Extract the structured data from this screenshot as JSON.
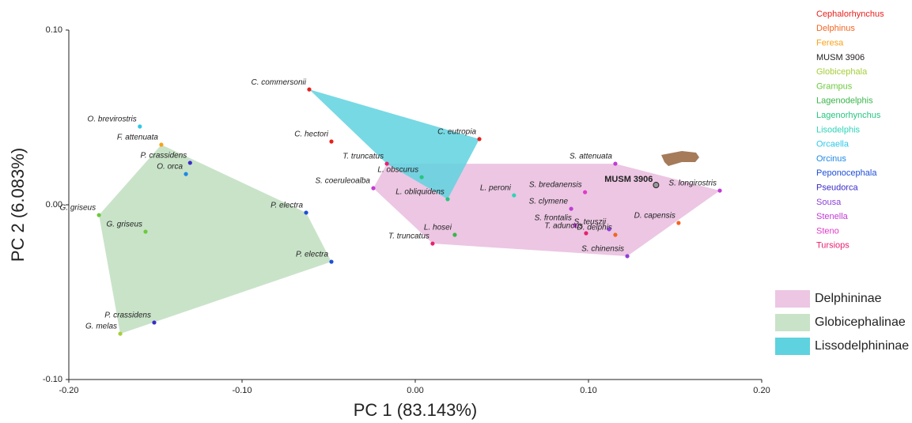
{
  "chart_data": {
    "type": "scatter",
    "xlabel": "PC 1 (83.143%)",
    "ylabel": "PC 2 (6.083%)",
    "xlim": [
      -0.2,
      0.2
    ],
    "ylim": [
      -0.1,
      0.1
    ],
    "xticks": [
      {
        "value": -0.2,
        "label": "-0.20"
      },
      {
        "value": -0.1,
        "label": "-0.10"
      },
      {
        "value": 0,
        "label": "0.00"
      },
      {
        "value": 0.1,
        "label": "0.10"
      },
      {
        "value": 0.2,
        "label": "0.20"
      }
    ],
    "yticks": [
      {
        "value": -0.1,
        "label": "-0.10"
      },
      {
        "value": 0,
        "label": "0.00"
      },
      {
        "value": 0.1,
        "label": "0.10"
      }
    ],
    "hulls": [
      {
        "name": "Delphininae",
        "color": "#ecc6e3",
        "x": [
          -0.0242,
          -0.0164,
          0.1155,
          0.1758,
          0.1224,
          0.01
        ],
        "y": [
          0.0095,
          0.0235,
          0.0235,
          0.0081,
          -0.0294,
          -0.0222
        ]
      },
      {
        "name": "Globicephalinae",
        "color": "#c9e3c9",
        "x": [
          -0.1826,
          -0.1466,
          -0.063,
          -0.0484,
          -0.1703
        ],
        "y": [
          -0.0059,
          0.0344,
          -0.0045,
          -0.0326,
          -0.0738
        ]
      },
      {
        "name": "Lissodelphininae",
        "color": "#5fd2df",
        "x": [
          -0.0612,
          0.037,
          0.0187,
          -0.0164
        ],
        "y": [
          0.066,
          0.0376,
          0.0032,
          0.0235
        ]
      }
    ],
    "series": [
      {
        "name": "Cephalorhynchus",
        "color": "#e8201c",
        "x": [
          -0.0612,
          -0.0484,
          0.037
        ],
        "y": [
          0.066,
          0.0362,
          0.0376
        ],
        "labels": [
          "C. commersonii",
          "C. hectori",
          "C. eutropia"
        ]
      },
      {
        "name": "Delphinus",
        "color": "#f26522",
        "x": [
          0.152,
          0.1155
        ],
        "y": [
          -0.0104,
          -0.0172
        ],
        "labels": [
          "D. capensis",
          "D. delphis"
        ]
      },
      {
        "name": "Feresa",
        "color": "#f7a21b",
        "x": [
          -0.1466
        ],
        "y": [
          0.0344
        ],
        "labels": [
          "F. attenuata"
        ]
      },
      {
        "name": "MUSM 3906",
        "color": "#231f20",
        "x": [
          0.139
        ],
        "y": [
          0.0113
        ],
        "labels": [
          "MUSM 3906"
        ]
      },
      {
        "name": "Globicephala",
        "color": "#a6ce39",
        "x": [
          -0.1703
        ],
        "y": [
          -0.0738
        ],
        "labels": [
          "G. melas"
        ]
      },
      {
        "name": "Grampus",
        "color": "#6dc93d",
        "x": [
          -0.1826,
          -0.1557
        ],
        "y": [
          -0.0059,
          -0.0154
        ],
        "labels": [
          "G. griseus",
          "G. griseus"
        ]
      },
      {
        "name": "Lagenodelphis",
        "color": "#39b54a",
        "x": [
          0.0228
        ],
        "y": [
          -0.0172
        ],
        "labels": [
          "L. hosei"
        ]
      },
      {
        "name": "Lagenorhynchus",
        "color": "#26c57f",
        "x": [
          0.0037,
          0.0187
        ],
        "y": [
          0.0158,
          0.0032
        ],
        "labels": [
          "L. obscurus",
          "L. obliquidens"
        ]
      },
      {
        "name": "Lisodelphis",
        "color": "#2ed3b7",
        "x": [
          0.057
        ],
        "y": [
          0.0054
        ],
        "labels": [
          "L. peroni"
        ]
      },
      {
        "name": "Orcaella",
        "color": "#2ec8e8",
        "x": [
          -0.159
        ],
        "y": [
          0.0448
        ],
        "labels": [
          "O. brevirostris"
        ]
      },
      {
        "name": "Orcinus",
        "color": "#1e88e5",
        "x": [
          -0.1324
        ],
        "y": [
          0.0176
        ],
        "labels": [
          "O. orca"
        ]
      },
      {
        "name": "Peponocephala",
        "color": "#1e4fd8",
        "x": [
          -0.063,
          -0.0484
        ],
        "y": [
          -0.0045,
          -0.0326
        ],
        "labels": [
          "P. electra",
          "P. electra"
        ]
      },
      {
        "name": "Pseudorca",
        "color": "#3b2cc9",
        "x": [
          -0.13,
          -0.1507
        ],
        "y": [
          0.024,
          -0.0674
        ],
        "labels": [
          "P. crassidens",
          "P. crassidens"
        ]
      },
      {
        "name": "Sousa",
        "color": "#8d3fd6",
        "x": [
          0.1119,
          0.1224
        ],
        "y": [
          -0.014,
          -0.0294
        ],
        "labels": [
          "S. teuszii",
          "S. chinensis"
        ]
      },
      {
        "name": "Stenella",
        "color": "#c23ad6",
        "x": [
          -0.0242,
          0.1155,
          0.1758,
          0.09,
          0.0922
        ],
        "y": [
          0.0095,
          0.0235,
          0.0081,
          -0.0023,
          -0.0118
        ],
        "labels": [
          "S. coeruleoalba",
          "S. attenuata",
          "S. longirostris",
          "S. clymene",
          "S. frontalis"
        ]
      },
      {
        "name": "Steno",
        "color": "#e03ac8",
        "x": [
          0.098
        ],
        "y": [
          0.0072
        ],
        "labels": [
          "S. bredanensis"
        ]
      },
      {
        "name": "Tursiops",
        "color": "#e8206e",
        "x": [
          -0.0164,
          0.01,
          0.0986
        ],
        "y": [
          0.0235,
          -0.0222,
          -0.0163
        ],
        "labels": [
          "T. truncatus",
          "T. truncatus",
          "T. aduncus"
        ]
      }
    ]
  }
}
